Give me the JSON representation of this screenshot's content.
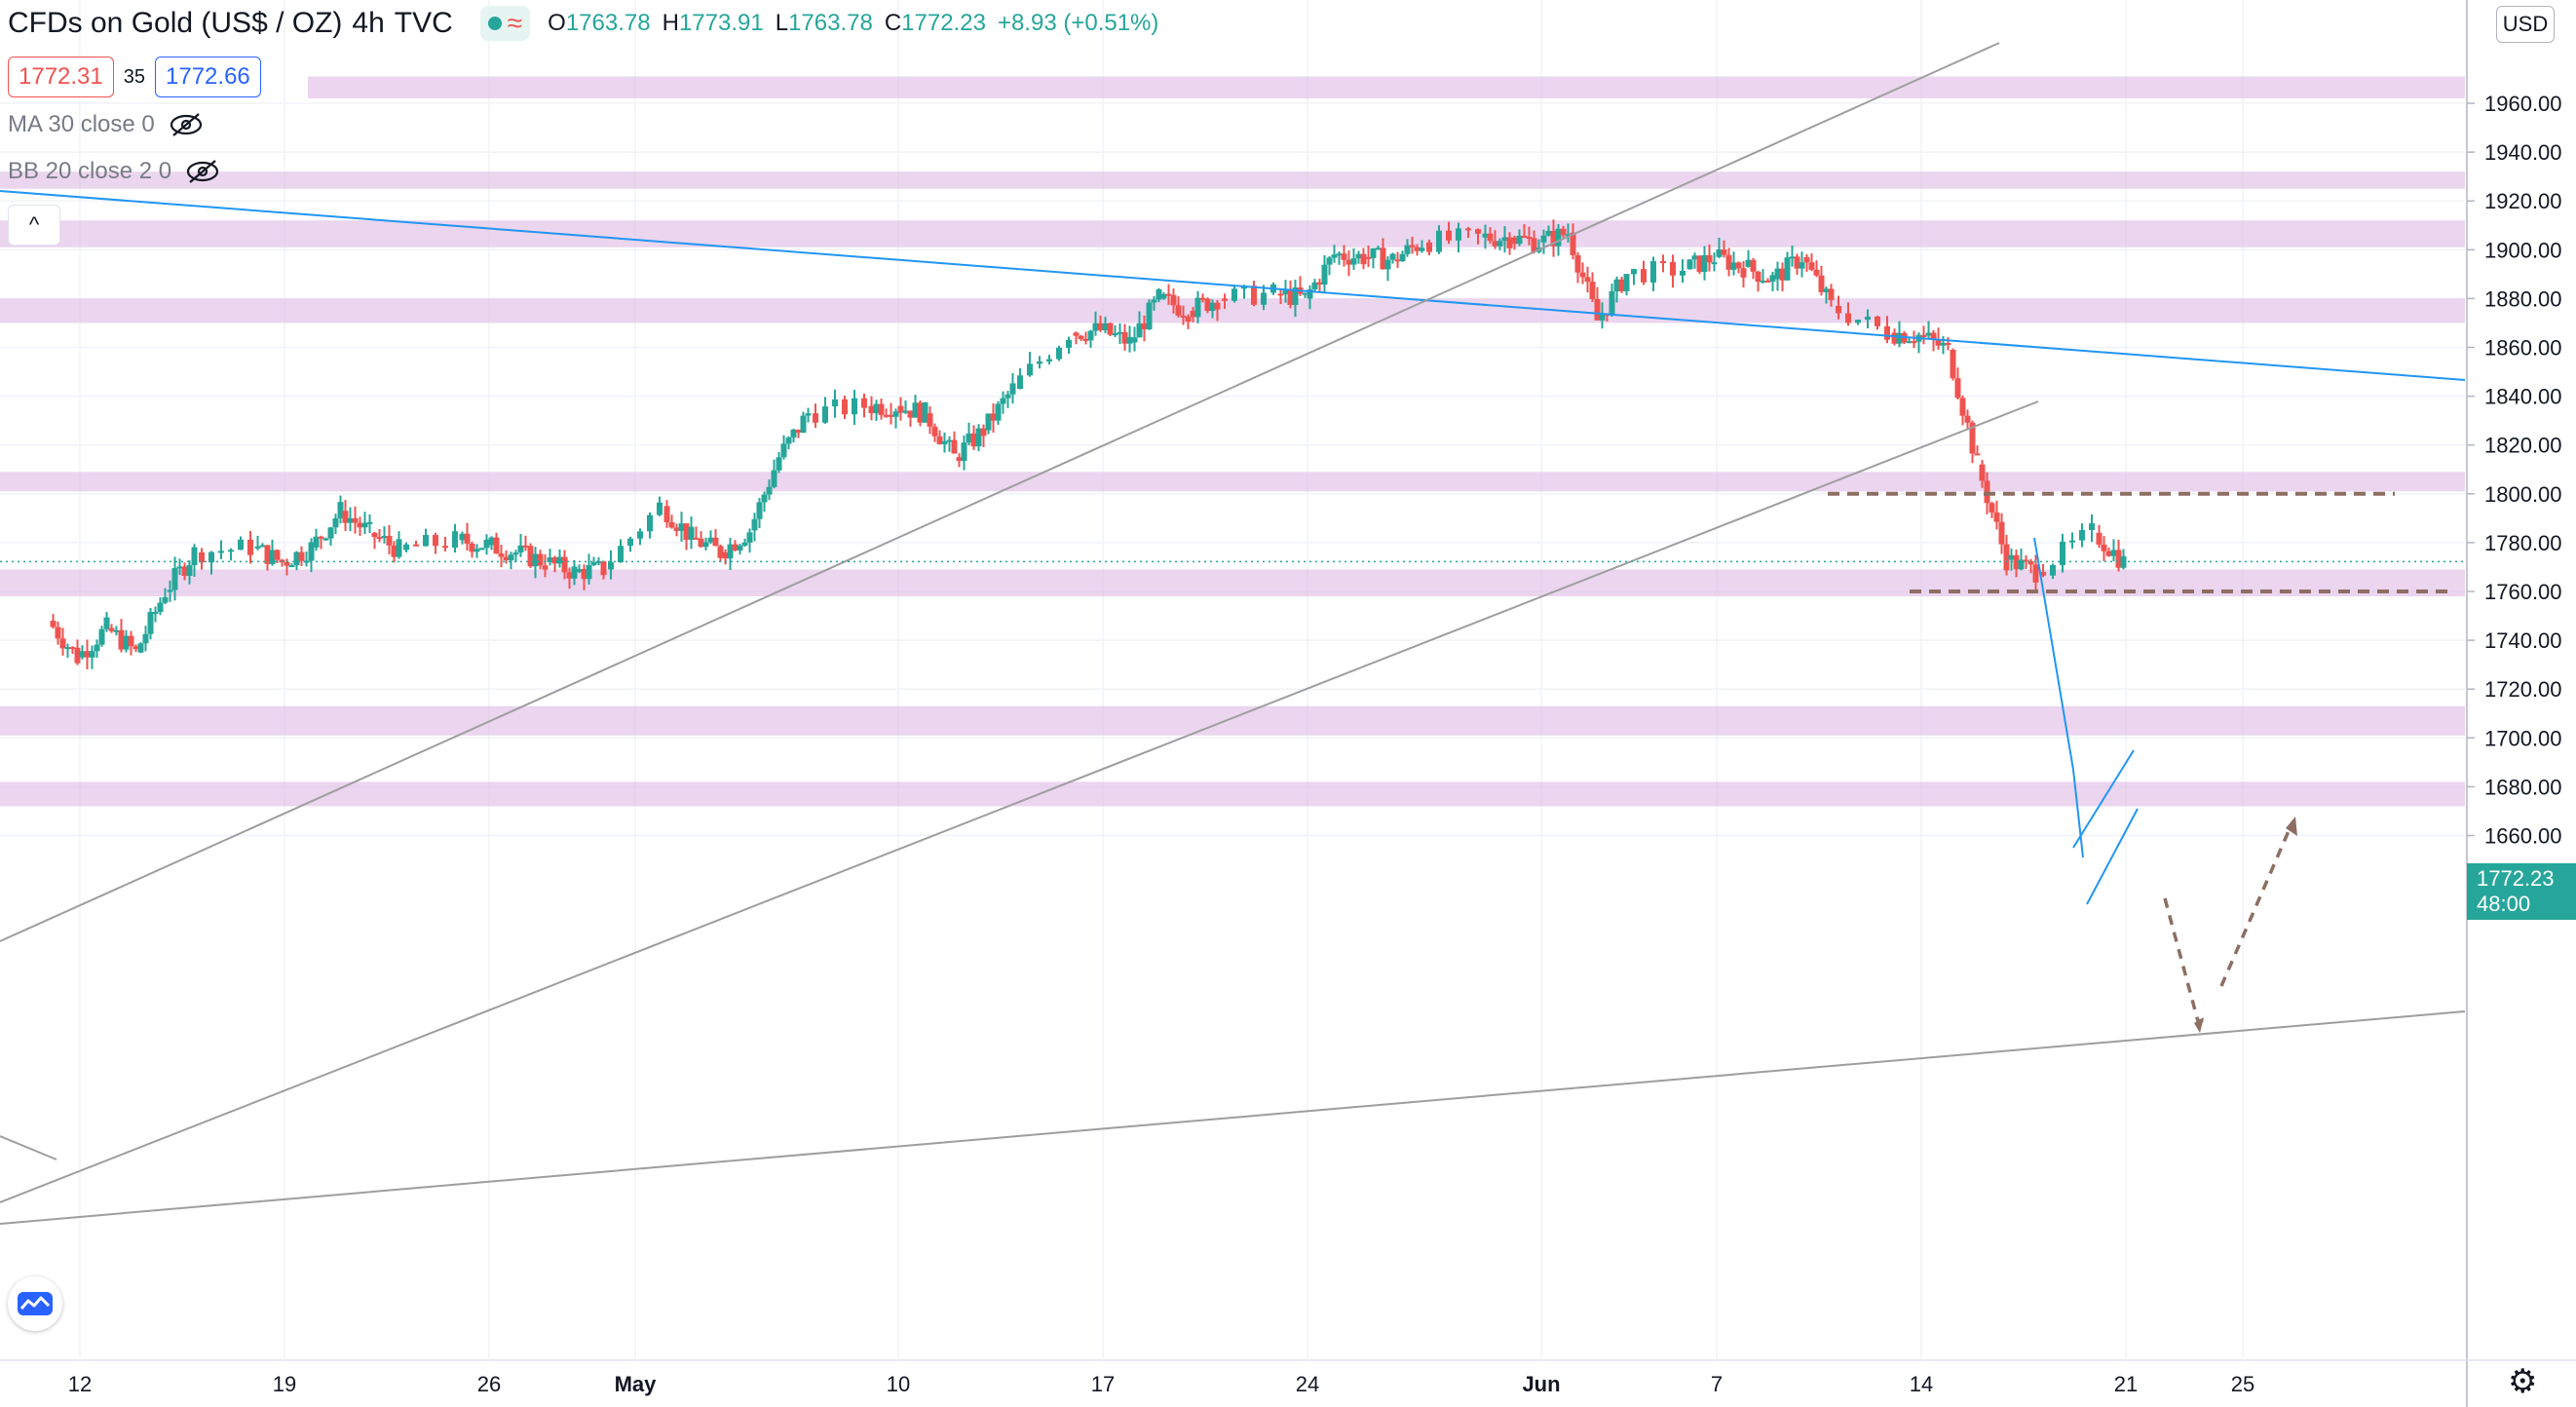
{
  "header": {
    "symbol_title": "CFDs on Gold (US$ / OZ)",
    "interval": "4h",
    "source": "TVC",
    "wave_icon": "≈",
    "ohlc": {
      "open_label": "O",
      "open": "1763.78",
      "high_label": "H",
      "high": "1773.91",
      "low_label": "L",
      "low": "1763.78",
      "close_label": "C",
      "close": "1772.23",
      "change": "+8.93 (+0.51%)"
    },
    "bid": "1772.31",
    "spread": "35",
    "ask": "1772.66"
  },
  "studies": [
    {
      "label": "MA 30 close 0"
    },
    {
      "label": "BB 20 close 2 0"
    }
  ],
  "collapse_icon": "^",
  "price_scale": {
    "currency": "USD",
    "last_price": "1772.23",
    "countdown": "48:00",
    "ticks": [
      "1960.00",
      "1940.00",
      "1920.00",
      "1900.00",
      "1880.00",
      "1860.00",
      "1840.00",
      "1820.00",
      "1800.00",
      "1780.00",
      "1760.00",
      "1740.00",
      "1720.00",
      "1700.00",
      "1680.00",
      "1660.00"
    ]
  },
  "time_scale": {
    "labels": [
      "12",
      "19",
      "26",
      "May",
      "10",
      "17",
      "24",
      "Jun",
      "7",
      "14",
      "21",
      "25"
    ]
  },
  "colors": {
    "up": "#26a69a",
    "down": "#ef5350",
    "zone": "#e1bee7",
    "trend_blue": "#2196f3",
    "channel_gray": "#9e9e9e",
    "projection_brown": "#8d6e63"
  },
  "chart_data": {
    "type": "candlestick",
    "symbol": "XAUUSD",
    "interval": "4h",
    "ylim": [
      1656,
      1975
    ],
    "x_range": [
      "2021-04-11",
      "2021-06-28"
    ],
    "support_resistance_zones": [
      [
        1962,
        1971
      ],
      [
        1925,
        1932
      ],
      [
        1901,
        1912
      ],
      [
        1870,
        1880
      ],
      [
        1801,
        1809
      ],
      [
        1758,
        1769
      ],
      [
        1701,
        1713
      ],
      [
        1672,
        1682
      ]
    ],
    "key_levels": [
      1800,
      1760
    ],
    "close_path": [
      {
        "date": "2021-04-11",
        "close": 1748
      },
      {
        "date": "2021-04-12",
        "close": 1733
      },
      {
        "date": "2021-04-13",
        "close": 1745
      },
      {
        "date": "2021-04-14",
        "close": 1735
      },
      {
        "date": "2021-04-15",
        "close": 1760
      },
      {
        "date": "2021-04-16",
        "close": 1776
      },
      {
        "date": "2021-04-18",
        "close": 1778
      },
      {
        "date": "2021-04-19",
        "close": 1772
      },
      {
        "date": "2021-04-20",
        "close": 1778
      },
      {
        "date": "2021-04-21",
        "close": 1793
      },
      {
        "date": "2021-04-22",
        "close": 1784
      },
      {
        "date": "2021-04-23",
        "close": 1777
      },
      {
        "date": "2021-04-25",
        "close": 1781
      },
      {
        "date": "2021-04-26",
        "close": 1779
      },
      {
        "date": "2021-04-27",
        "close": 1776
      },
      {
        "date": "2021-04-28",
        "close": 1772
      },
      {
        "date": "2021-04-29",
        "close": 1768
      },
      {
        "date": "2021-04-30",
        "close": 1769
      },
      {
        "date": "2021-05-02",
        "close": 1795
      },
      {
        "date": "2021-05-03",
        "close": 1782
      },
      {
        "date": "2021-05-04",
        "close": 1776
      },
      {
        "date": "2021-05-05",
        "close": 1785
      },
      {
        "date": "2021-05-06",
        "close": 1815
      },
      {
        "date": "2021-05-07",
        "close": 1833
      },
      {
        "date": "2021-05-09",
        "close": 1836
      },
      {
        "date": "2021-05-10",
        "close": 1836
      },
      {
        "date": "2021-05-11",
        "close": 1833
      },
      {
        "date": "2021-05-12",
        "close": 1815
      },
      {
        "date": "2021-05-13",
        "close": 1826
      },
      {
        "date": "2021-05-14",
        "close": 1843
      },
      {
        "date": "2021-05-16",
        "close": 1866
      },
      {
        "date": "2021-05-17",
        "close": 1867
      },
      {
        "date": "2021-05-18",
        "close": 1862
      },
      {
        "date": "2021-05-19",
        "close": 1880
      },
      {
        "date": "2021-05-20",
        "close": 1875
      },
      {
        "date": "2021-05-21",
        "close": 1880
      },
      {
        "date": "2021-05-23",
        "close": 1882
      },
      {
        "date": "2021-05-24",
        "close": 1880
      },
      {
        "date": "2021-05-25",
        "close": 1898
      },
      {
        "date": "2021-05-26",
        "close": 1897
      },
      {
        "date": "2021-05-27",
        "close": 1896
      },
      {
        "date": "2021-05-28",
        "close": 1903
      },
      {
        "date": "2021-05-30",
        "close": 1905
      },
      {
        "date": "2021-05-31",
        "close": 1905
      },
      {
        "date": "2021-06-01",
        "close": 1903
      },
      {
        "date": "2021-06-02",
        "close": 1907
      },
      {
        "date": "2021-06-03",
        "close": 1871
      },
      {
        "date": "2021-06-04",
        "close": 1890
      },
      {
        "date": "2021-06-06",
        "close": 1892
      },
      {
        "date": "2021-06-07",
        "close": 1897
      },
      {
        "date": "2021-06-08",
        "close": 1893
      },
      {
        "date": "2021-06-09",
        "close": 1888
      },
      {
        "date": "2021-06-10",
        "close": 1897
      },
      {
        "date": "2021-06-11",
        "close": 1877
      },
      {
        "date": "2021-06-13",
        "close": 1866
      },
      {
        "date": "2021-06-14",
        "close": 1865
      },
      {
        "date": "2021-06-15",
        "close": 1859
      },
      {
        "date": "2021-06-16",
        "close": 1812
      },
      {
        "date": "2021-06-17",
        "close": 1773
      },
      {
        "date": "2021-06-18",
        "close": 1768
      },
      {
        "date": "2021-06-20",
        "close": 1784
      },
      {
        "date": "2021-06-21",
        "close": 1772
      }
    ]
  }
}
